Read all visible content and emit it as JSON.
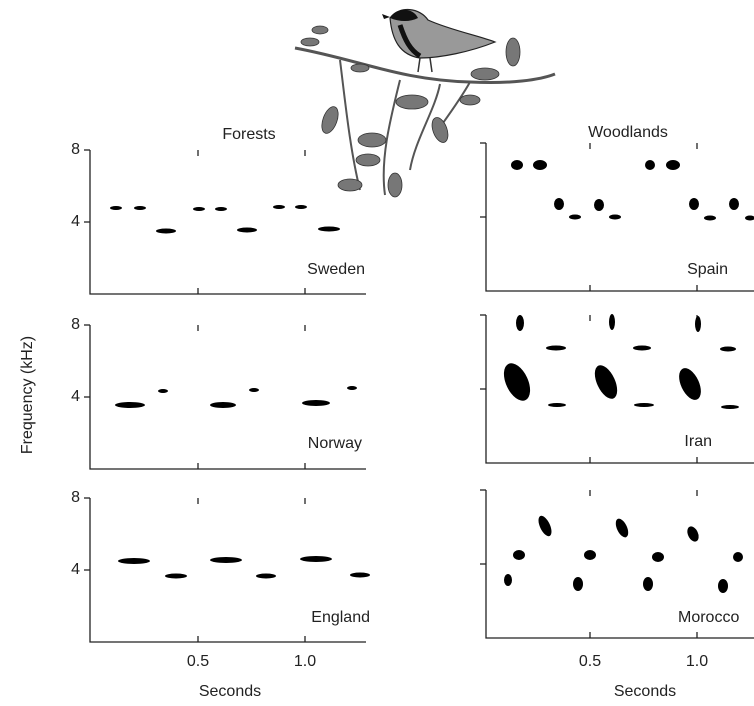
{
  "ylabel": "Frequency (kHz)",
  "columns": [
    {
      "title": "Forests",
      "panels": [
        "Sweden",
        "Norway",
        "England"
      ],
      "yticks": [
        "8",
        "4"
      ],
      "xticks": [
        "0.5",
        "1.0"
      ],
      "xlabel": "Seconds"
    },
    {
      "title": "Woodlands",
      "panels": [
        "Spain",
        "Iran",
        "Morocco"
      ],
      "xticks": [
        "0.5",
        "1.0"
      ],
      "xlabel": "Seconds"
    }
  ]
}
